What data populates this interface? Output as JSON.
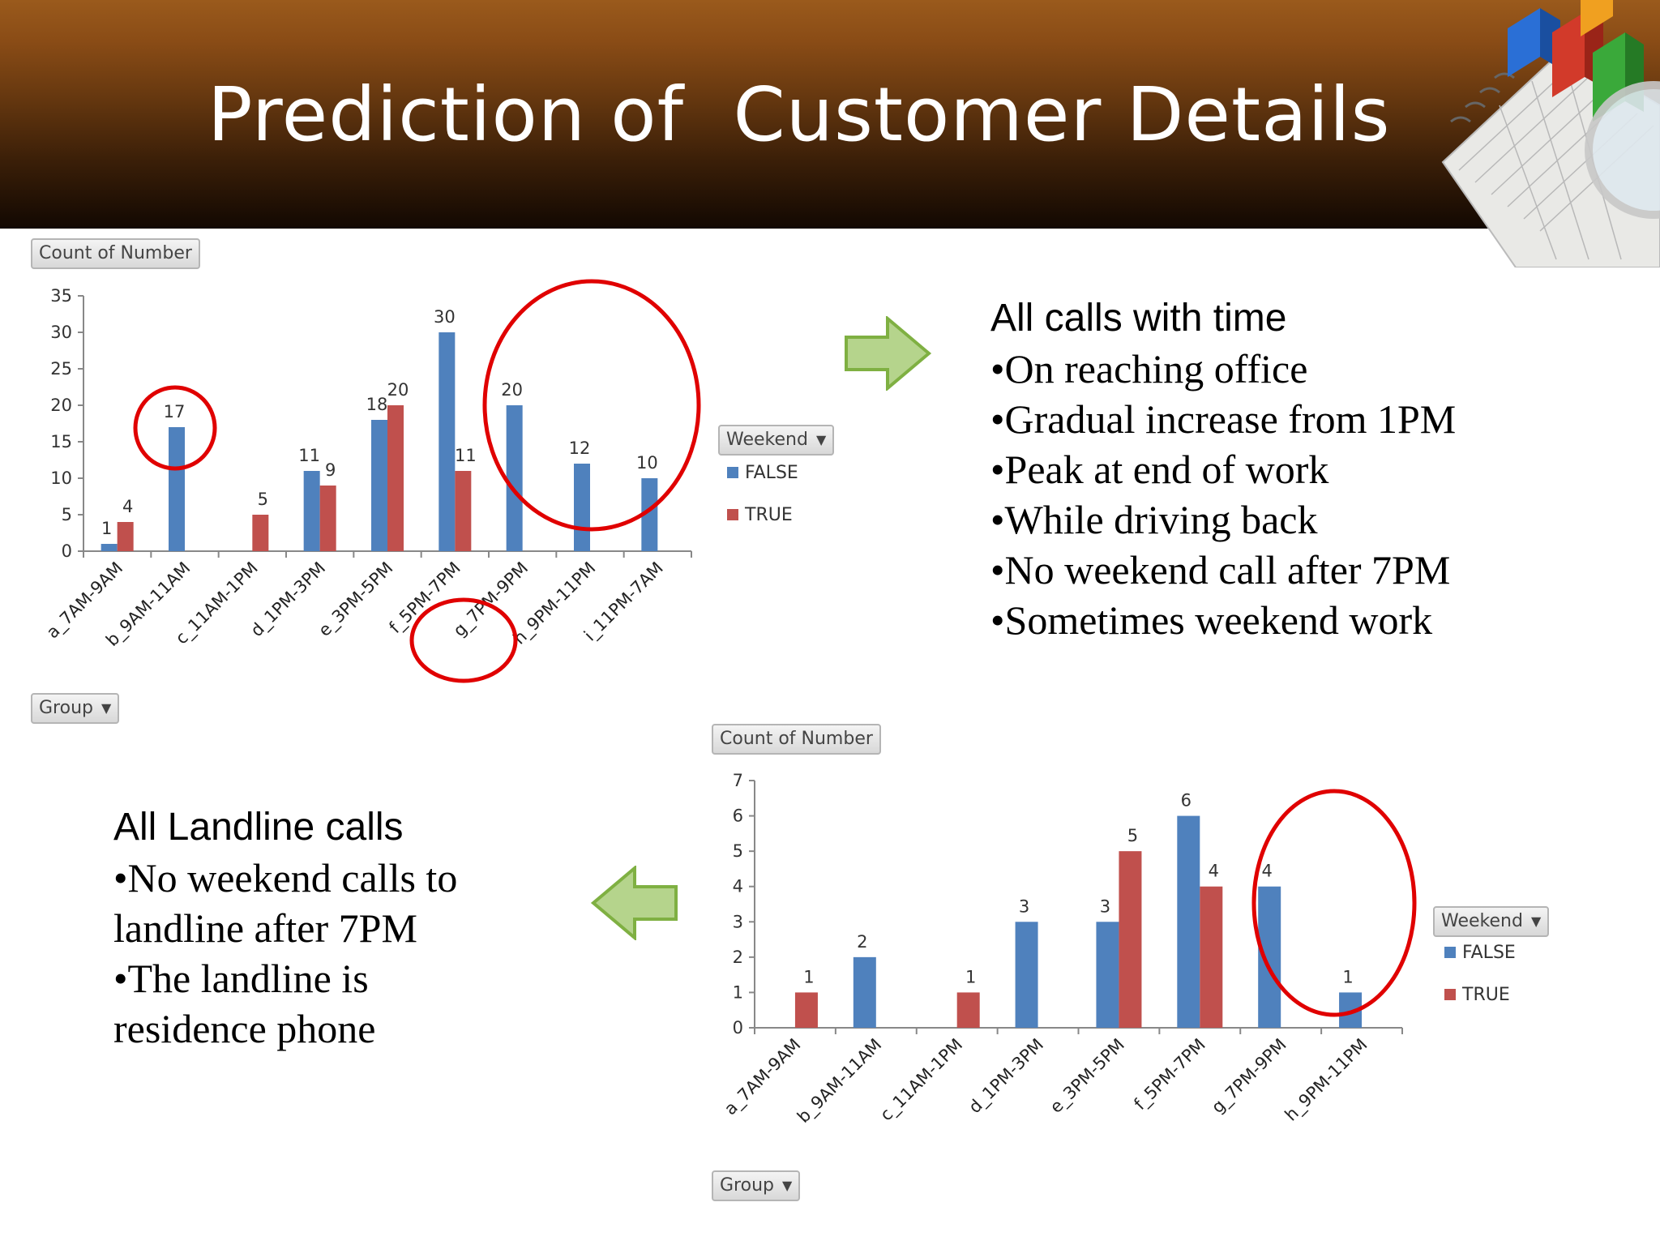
{
  "slide": {
    "title": "Prediction of  Customer Details"
  },
  "top_panel": {
    "heading": "All calls with time",
    "bullets": [
      "•On reaching office",
      "•Gradual increase from 1PM",
      "•Peak at end of work",
      "•While driving back",
      "•No weekend call after 7PM",
      "•Sometimes weekend work"
    ]
  },
  "bottom_panel": {
    "heading": "All Landline calls",
    "bullets": [
      "•No weekend calls to",
      "landline after 7PM",
      "•The landline is",
      "residence phone"
    ]
  },
  "colors": {
    "false_series": "#4f81bd",
    "true_series": "#c0504d",
    "highlight_circle": "#e00000",
    "arrow_fill": "#b5d48c",
    "arrow_stroke": "#7fb042"
  },
  "icons": {
    "right_arrow": "right-arrow-icon",
    "left_arrow": "left-arrow-icon",
    "dropdown": "chevron-down-icon"
  },
  "chart_data": [
    {
      "type": "bar",
      "field_button": "Count of Number",
      "legend_button": "Weekend",
      "axis_button": "Group",
      "legend_position": "right",
      "categories": [
        "a_7AM-9AM",
        "b_9AM-11AM",
        "c_11AM-1PM",
        "d_1PM-3PM",
        "e_3PM-5PM",
        "f_5PM-7PM",
        "g_7PM-9PM",
        "h_9PM-11PM",
        "i_11PM-7AM"
      ],
      "series": [
        {
          "name": "FALSE",
          "values": [
            1,
            17,
            null,
            11,
            18,
            30,
            20,
            12,
            10
          ]
        },
        {
          "name": "TRUE",
          "values": [
            4,
            null,
            5,
            9,
            20,
            11,
            null,
            null,
            null
          ]
        }
      ],
      "y_ticks": [
        "0",
        "5",
        "10",
        "15",
        "20",
        "25",
        "30",
        "35"
      ],
      "ylim": [
        0,
        35
      ],
      "grid": false
    },
    {
      "type": "bar",
      "field_button": "Count of Number",
      "legend_button": "Weekend",
      "axis_button": "Group",
      "legend_position": "right",
      "categories": [
        "a_7AM-9AM",
        "b_9AM-11AM",
        "c_11AM-1PM",
        "d_1PM-3PM",
        "e_3PM-5PM",
        "f_5PM-7PM",
        "g_7PM-9PM",
        "h_9PM-11PM"
      ],
      "series": [
        {
          "name": "FALSE",
          "values": [
            null,
            2,
            null,
            3,
            3,
            6,
            4,
            1
          ]
        },
        {
          "name": "TRUE",
          "values": [
            1,
            null,
            1,
            null,
            5,
            4,
            null,
            null
          ]
        }
      ],
      "y_ticks": [
        "0",
        "1",
        "2",
        "3",
        "4",
        "5",
        "6",
        "7"
      ],
      "ylim": [
        0,
        7
      ],
      "grid": false
    }
  ]
}
